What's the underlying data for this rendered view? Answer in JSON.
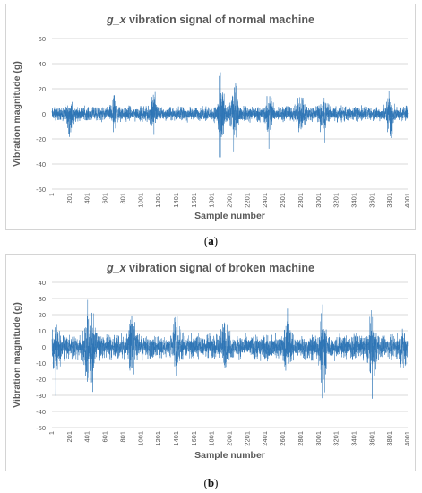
{
  "chart_data": [
    {
      "type": "line",
      "title_var": "g_x",
      "title_rest": " vibration signal of normal machine",
      "xlabel": "Sample number",
      "ylabel": "Vibration magnitude (g)",
      "ylim": [
        -60,
        60
      ],
      "yticks": [
        60,
        40,
        20,
        0,
        -20,
        -40,
        -60
      ],
      "xlim": [
        1,
        4001
      ],
      "xticks": [
        "1",
        "201",
        "401",
        "601",
        "801",
        "1001",
        "1201",
        "1401",
        "1601",
        "1801",
        "2001",
        "2201",
        "2401",
        "2601",
        "2801",
        "3001",
        "3201",
        "3401",
        "3601",
        "3801",
        "4001"
      ],
      "series_color": "#2e75b6",
      "n_samples": 4001,
      "signal_profile": {
        "base_amplitude_g": 7,
        "peak_events": [
          {
            "sample": 200,
            "max_g": 13,
            "min_g": -22
          },
          {
            "sample": 700,
            "max_g": 20,
            "min_g": -18
          },
          {
            "sample": 1150,
            "max_g": 26,
            "min_g": -20
          },
          {
            "sample": 1900,
            "max_g": 42,
            "min_g": -49
          },
          {
            "sample": 2050,
            "max_g": 33,
            "min_g": -34
          },
          {
            "sample": 2450,
            "max_g": 24,
            "min_g": -36
          },
          {
            "sample": 2800,
            "max_g": 27,
            "min_g": -24
          },
          {
            "sample": 3050,
            "max_g": 25,
            "min_g": -27
          },
          {
            "sample": 3800,
            "max_g": 20,
            "min_g": -26
          }
        ]
      }
    },
    {
      "type": "line",
      "title_var": "g_x",
      "title_rest": " vibration signal of broken machine",
      "xlabel": "Sample number",
      "ylabel": "Vibration magnitude (g)",
      "ylim": [
        -50,
        40
      ],
      "yticks": [
        40,
        30,
        20,
        10,
        0,
        -10,
        -20,
        -30,
        -40,
        -50
      ],
      "xlim": [
        1,
        4001
      ],
      "xticks": [
        "1",
        "201",
        "401",
        "601",
        "801",
        "1001",
        "1201",
        "1401",
        "1601",
        "1801",
        "2001",
        "2201",
        "2401",
        "2601",
        "2801",
        "3001",
        "3201",
        "3401",
        "3601",
        "3801",
        "4001"
      ],
      "series_color": "#2e75b6",
      "n_samples": 4001,
      "signal_profile": {
        "base_amplitude_g": 9,
        "peak_events": [
          {
            "sample": 50,
            "max_g": 18,
            "min_g": -34
          },
          {
            "sample": 400,
            "max_g": 36,
            "min_g": -30
          },
          {
            "sample": 450,
            "max_g": 30,
            "min_g": -32
          },
          {
            "sample": 900,
            "max_g": 28,
            "min_g": -26
          },
          {
            "sample": 1400,
            "max_g": 27,
            "min_g": -22
          },
          {
            "sample": 1950,
            "max_g": 30,
            "min_g": -20
          },
          {
            "sample": 2650,
            "max_g": 29,
            "min_g": -20
          },
          {
            "sample": 3050,
            "max_g": 29,
            "min_g": -37
          },
          {
            "sample": 3600,
            "max_g": 25,
            "min_g": -37
          },
          {
            "sample": 3950,
            "max_g": 15,
            "min_g": -20
          }
        ]
      }
    }
  ],
  "captions": {
    "a": "(a)",
    "b": "(b)"
  }
}
